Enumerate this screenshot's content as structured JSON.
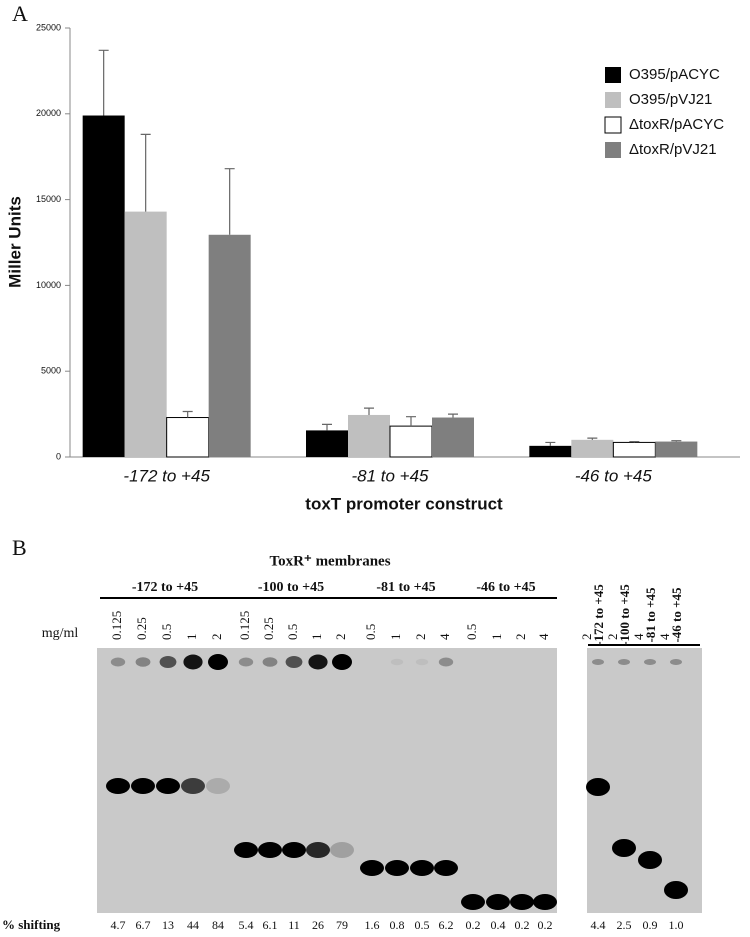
{
  "chart_data": {
    "type": "bar",
    "panel_label": "A",
    "categories": [
      "-172 to +45",
      "-81 to +45",
      "-46 to +45"
    ],
    "x_label": "toxT promoter construct",
    "y_label": "Miller Units",
    "ylim": [
      0,
      25000
    ],
    "yticks": [
      0,
      5000,
      10000,
      15000,
      20000,
      25000
    ],
    "grid": false,
    "legend": "upper right",
    "series": [
      {
        "name": "O395/pACYC",
        "color": "#000000",
        "values": [
          19900,
          1550,
          650
        ],
        "errors": [
          3800,
          350,
          200
        ]
      },
      {
        "name": "O395/pVJ21",
        "color": "#bfbfbf",
        "values": [
          14300,
          2450,
          1000
        ],
        "errors": [
          4500,
          400,
          100
        ]
      },
      {
        "name": "ΔtoxR/pACYC",
        "color": "#ffffff",
        "values": [
          2300,
          1800,
          850
        ],
        "errors": [
          350,
          550,
          50
        ]
      },
      {
        "name": "ΔtoxR/pVJ21",
        "color": "#7f7f7f",
        "values": [
          12950,
          2300,
          900
        ],
        "errors": [
          3850,
          200,
          50
        ]
      }
    ]
  },
  "panel_b": {
    "panel_label": "B",
    "title": "ToxR⁺ membranes",
    "unit": "mg/ml",
    "shift_label": "% shifting",
    "groups": [
      {
        "label": "-172 to +45",
        "lanes": [
          "0.125",
          "0.25",
          "0.5",
          "1",
          "2"
        ],
        "shifting": [
          "4.7",
          "6.7",
          "13",
          "44",
          "84"
        ]
      },
      {
        "label": "-100 to +45",
        "lanes": [
          "0.125",
          "0.25",
          "0.5",
          "1",
          "2"
        ],
        "shifting": [
          "5.4",
          "6.1",
          "11",
          "26",
          "79"
        ]
      },
      {
        "label": "-81 to +45",
        "lanes": [
          "0.5",
          "1",
          "2",
          "4"
        ],
        "shifting": [
          "1.6",
          "0.8",
          "0.5",
          "6.2"
        ]
      },
      {
        "label": "-46 to +45",
        "lanes": [
          "0.5",
          "1",
          "2",
          "4"
        ],
        "shifting": [
          "0.2",
          "0.4",
          "0.2",
          "0.2"
        ]
      }
    ],
    "right_lanes": [
      {
        "label": "-172 to +45",
        "conc": "2",
        "shifting": "4.4"
      },
      {
        "label": "-100 to +45",
        "conc": "2",
        "shifting": "2.5"
      },
      {
        "label": "-81 to +45",
        "conc": "4",
        "shifting": "0.9"
      },
      {
        "label": "-46 to +45",
        "conc": "4",
        "shifting": "1.0"
      }
    ]
  }
}
